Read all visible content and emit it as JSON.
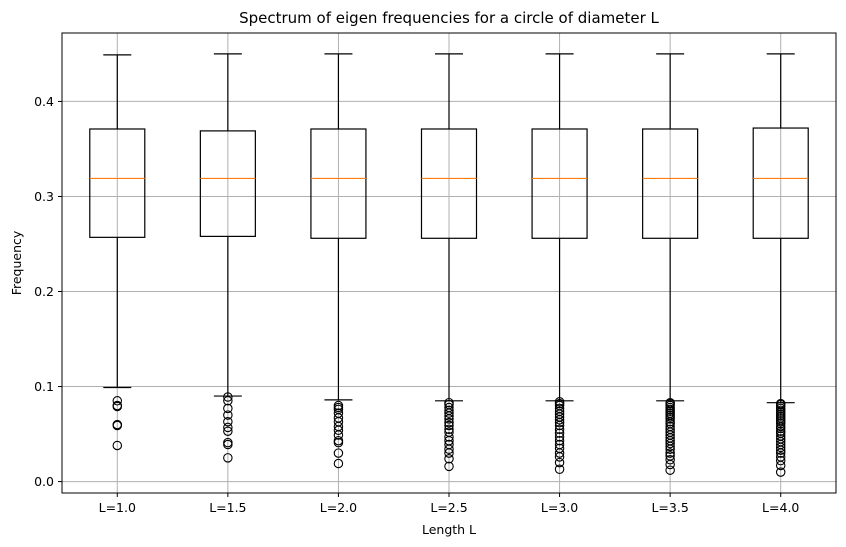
{
  "chart_data": {
    "type": "box",
    "title": "Spectrum of eigen frequencies for a circle of diameter L",
    "xlabel": "Length L",
    "ylabel": "Frequency",
    "ylim": [
      -0.012,
      0.472
    ],
    "y_ticks": [
      "0.0",
      "0.1",
      "0.2",
      "0.3",
      "0.4"
    ],
    "y_tick_values": [
      0.0,
      0.1,
      0.2,
      0.3,
      0.4
    ],
    "grid": true,
    "colors": {
      "box": "#000000",
      "median": "#ff7f0e",
      "grid": "#b0b0b0"
    },
    "categories": [
      "L=1.0",
      "L=1.5",
      "L=2.0",
      "L=2.5",
      "L=3.0",
      "L=3.5",
      "L=4.0"
    ],
    "boxes": [
      {
        "whisker_low": 0.099,
        "q1": 0.257,
        "median": 0.319,
        "q3": 0.371,
        "whisker_high": 0.449,
        "outliers": [
          0.085,
          0.08,
          0.079,
          0.06,
          0.059,
          0.038
        ]
      },
      {
        "whisker_low": 0.09,
        "q1": 0.258,
        "median": 0.319,
        "q3": 0.369,
        "whisker_high": 0.45,
        "outliers": [
          0.089,
          0.085,
          0.077,
          0.07,
          0.063,
          0.057,
          0.053,
          0.041,
          0.039,
          0.025
        ]
      },
      {
        "whisker_low": 0.086,
        "q1": 0.256,
        "median": 0.319,
        "q3": 0.371,
        "whisker_high": 0.45,
        "outliers": [
          0.08,
          0.078,
          0.076,
          0.072,
          0.067,
          0.063,
          0.058,
          0.054,
          0.049,
          0.043,
          0.041,
          0.03,
          0.019
        ]
      },
      {
        "whisker_low": 0.085,
        "q1": 0.256,
        "median": 0.319,
        "q3": 0.371,
        "whisker_high": 0.45,
        "outliers": [
          0.083,
          0.081,
          0.078,
          0.075,
          0.072,
          0.069,
          0.066,
          0.062,
          0.059,
          0.055,
          0.052,
          0.047,
          0.043,
          0.039,
          0.034,
          0.03,
          0.024,
          0.016
        ]
      },
      {
        "whisker_low": 0.085,
        "q1": 0.256,
        "median": 0.319,
        "q3": 0.371,
        "whisker_high": 0.45,
        "outliers": [
          0.084,
          0.082,
          0.08,
          0.077,
          0.074,
          0.071,
          0.068,
          0.065,
          0.062,
          0.059,
          0.055,
          0.051,
          0.047,
          0.043,
          0.039,
          0.035,
          0.03,
          0.026,
          0.02,
          0.013
        ]
      },
      {
        "whisker_low": 0.085,
        "q1": 0.256,
        "median": 0.319,
        "q3": 0.371,
        "whisker_high": 0.45,
        "outliers": [
          0.083,
          0.082,
          0.08,
          0.078,
          0.076,
          0.074,
          0.072,
          0.07,
          0.068,
          0.066,
          0.063,
          0.061,
          0.058,
          0.055,
          0.052,
          0.049,
          0.046,
          0.043,
          0.04,
          0.037,
          0.034,
          0.03,
          0.027,
          0.023,
          0.018,
          0.012
        ]
      },
      {
        "whisker_low": 0.083,
        "q1": 0.256,
        "median": 0.319,
        "q3": 0.372,
        "whisker_high": 0.45,
        "outliers": [
          0.082,
          0.081,
          0.079,
          0.077,
          0.075,
          0.073,
          0.071,
          0.069,
          0.067,
          0.065,
          0.063,
          0.061,
          0.058,
          0.056,
          0.053,
          0.051,
          0.048,
          0.045,
          0.042,
          0.039,
          0.036,
          0.033,
          0.03,
          0.026,
          0.022,
          0.017,
          0.01
        ]
      }
    ]
  }
}
